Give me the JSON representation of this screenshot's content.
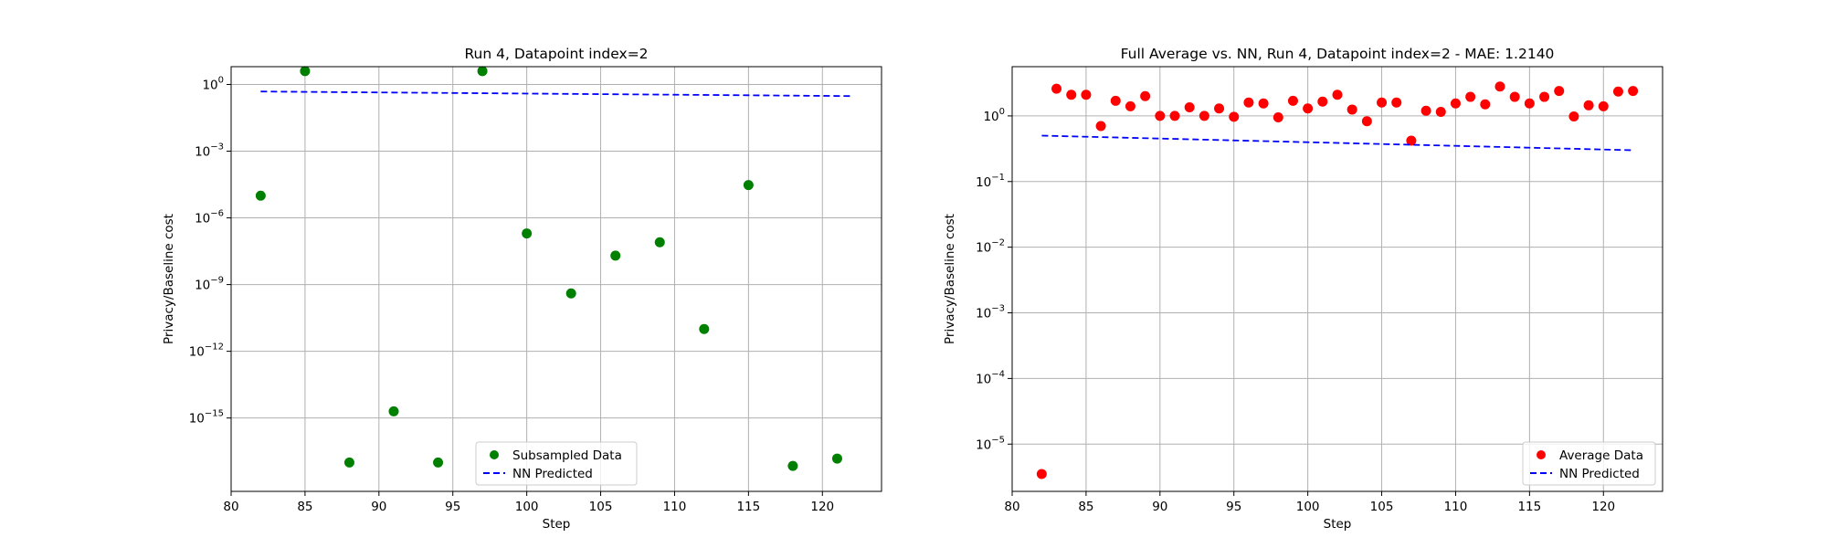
{
  "chart_data": [
    {
      "type": "scatter",
      "title": "Run 4, Datapoint index=2",
      "xlabel": "Step",
      "ylabel": "Privacy/Baseline cost",
      "xlim": [
        80,
        124
      ],
      "xticks": [
        "80",
        "85",
        "90",
        "95",
        "100",
        "105",
        "110",
        "115",
        "120"
      ],
      "yscale": "log",
      "ylim_log10": [
        -18.3,
        0.8
      ],
      "yticks": [
        {
          "exp": 0,
          "label": "0"
        },
        {
          "exp": -3,
          "label": "−3"
        },
        {
          "exp": -6,
          "label": "−6"
        },
        {
          "exp": -9,
          "label": "−9"
        },
        {
          "exp": -12,
          "label": "−12"
        },
        {
          "exp": -15,
          "label": "−15"
        }
      ],
      "grid": true,
      "legend_position": "bottom-center",
      "series": [
        {
          "name": "Subsampled Data",
          "kind": "points",
          "color": "#008000",
          "x": [
            82,
            85,
            88,
            91,
            94,
            97,
            100,
            103,
            106,
            109,
            112,
            115,
            118,
            121
          ],
          "y": [
            1e-05,
            4.0,
            1e-17,
            2e-15,
            1e-17,
            4.0,
            2e-07,
            4e-10,
            2e-08,
            8e-08,
            1e-11,
            3e-05,
            7e-18,
            1.5e-17
          ]
        },
        {
          "name": "NN Predicted",
          "kind": "dashed-line",
          "color": "#0000ff",
          "x": [
            82,
            122
          ],
          "y": [
            0.48,
            0.3
          ]
        }
      ]
    },
    {
      "type": "scatter",
      "title": "Full Average vs. NN, Run 4, Datapoint index=2 - MAE: 1.2140",
      "xlabel": "Step",
      "ylabel": "Privacy/Baseline cost",
      "xlim": [
        80,
        124
      ],
      "xticks": [
        "80",
        "85",
        "90",
        "95",
        "100",
        "105",
        "110",
        "115",
        "120"
      ],
      "yscale": "log",
      "ylim_log10": [
        -5.72,
        0.75
      ],
      "yticks": [
        {
          "exp": 0,
          "label": "0"
        },
        {
          "exp": -1,
          "label": "−1"
        },
        {
          "exp": -2,
          "label": "−2"
        },
        {
          "exp": -3,
          "label": "−3"
        },
        {
          "exp": -4,
          "label": "−4"
        },
        {
          "exp": -5,
          "label": "−5"
        }
      ],
      "grid": true,
      "legend_position": "lower right",
      "series": [
        {
          "name": "Average Data",
          "kind": "points",
          "color": "#ff0000",
          "x": [
            82,
            83,
            84,
            85,
            86,
            87,
            88,
            89,
            90,
            91,
            92,
            93,
            94,
            95,
            96,
            97,
            98,
            99,
            100,
            101,
            102,
            103,
            104,
            105,
            106,
            107,
            108,
            109,
            110,
            111,
            112,
            113,
            114,
            115,
            116,
            117,
            118,
            119,
            120,
            121,
            122
          ],
          "y": [
            3.5e-06,
            2.6,
            2.1,
            2.1,
            0.7,
            1.7,
            1.4,
            2.0,
            1.0,
            1.0,
            1.35,
            1.0,
            1.3,
            0.97,
            1.6,
            1.55,
            0.95,
            1.7,
            1.3,
            1.65,
            2.1,
            1.25,
            0.83,
            1.6,
            1.6,
            0.42,
            1.2,
            1.15,
            1.55,
            1.95,
            1.5,
            2.8,
            1.95,
            1.55,
            1.95,
            2.4,
            0.98,
            1.45,
            1.4,
            2.35,
            2.4
          ]
        },
        {
          "name": "NN Predicted",
          "kind": "dashed-line",
          "color": "#0000ff",
          "x": [
            82,
            122
          ],
          "y": [
            0.5,
            0.3
          ]
        }
      ]
    }
  ]
}
